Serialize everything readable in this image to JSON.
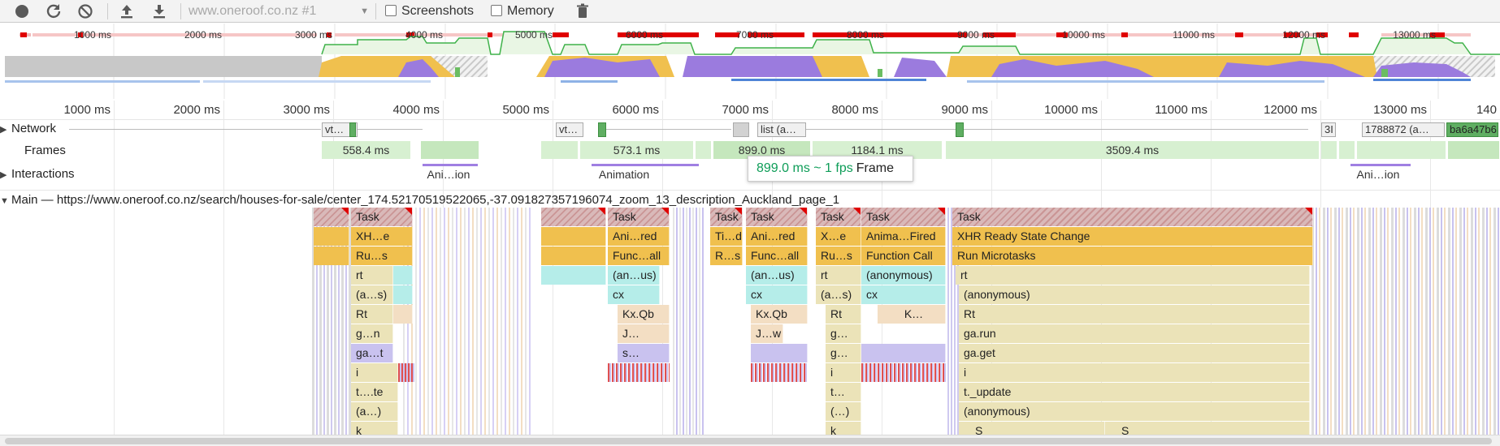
{
  "toolbar": {
    "record_icon": "record-icon",
    "reload_icon": "reload-icon",
    "clear_icon": "clear-icon",
    "upload_icon": "upload-profile-icon",
    "download_icon": "download-profile-icon",
    "profile_select": "www.oneroof.co.nz #1",
    "screenshots_label": "Screenshots",
    "memory_label": "Memory",
    "trash_icon": "trash-icon",
    "screenshots_checked": false,
    "memory_checked": false
  },
  "overview": {
    "ticks": [
      "1000 ms",
      "2000 ms",
      "3000 ms",
      "4000 ms",
      "5000 ms",
      "6000 ms",
      "7000 ms",
      "8000 ms",
      "9000 ms",
      "10000 ms",
      "11000 ms",
      "12000 ms",
      "13000 ms"
    ]
  },
  "ruler": {
    "ticks": [
      "1000 ms",
      "2000 ms",
      "3000 ms",
      "4000 ms",
      "5000 ms",
      "6000 ms",
      "7000 ms",
      "8000 ms",
      "9000 ms",
      "10000 ms",
      "11000 ms",
      "12000 ms",
      "13000 ms",
      "140"
    ]
  },
  "tracks": {
    "network": {
      "label": "Network",
      "bars": [
        "vt…",
        "vt…",
        "list (a…",
        "3I",
        "1788872 (a…",
        "ba6a47b6"
      ]
    },
    "frames": {
      "label": "Frames",
      "items": [
        "558.4 ms",
        "573.1 ms",
        "899.0 ms",
        "1184.1 ms",
        "3509.4 ms"
      ]
    },
    "interactions": {
      "label": "Interactions",
      "items": [
        "Ani…ion",
        "Animation",
        "Ani…ion"
      ]
    },
    "main": {
      "label": "Main — https://www.oneroof.co.nz/search/houses-for-sale/center_174.52170519522065,-37.091827357196074_zoom_13_description_Auckland_page_1"
    }
  },
  "tooltip": {
    "duration": "899.0 ms ~ 1 fps",
    "kind": "Frame"
  },
  "flame": {
    "task": "Task",
    "col1": [
      "XH…e",
      "Ru…s",
      "rt",
      "(a…s)",
      "Rt",
      "g…n",
      "ga…t",
      "i",
      "t….te",
      "(a…)",
      "k"
    ],
    "col2": [
      "Ani…red",
      "Func…all",
      "(an…us)",
      "cx",
      "Kx.Qb",
      "J…",
      "s…"
    ],
    "col3": [
      "Ti…d",
      "R…s"
    ],
    "col4": [
      "Ani…red",
      "Func…all",
      "(an…us)",
      "cx",
      "Kx.Qb",
      "J…w"
    ],
    "col5": [
      "X…e",
      "Ru…s",
      "rt",
      "(a…s)",
      "Rt",
      "g…",
      "g…",
      "i",
      "t…",
      "(…)",
      "k"
    ],
    "col6": [
      "Anima…Fired",
      "Function Call",
      "(anonymous)",
      "cx",
      "K…"
    ],
    "col7": [
      "XHR Ready State Change",
      "Run Microtasks",
      "rt",
      "(anonymous)",
      "Rt",
      "ga.run",
      "ga.get",
      "i",
      "t._update",
      "(anonymous)",
      "S",
      "S"
    ]
  }
}
